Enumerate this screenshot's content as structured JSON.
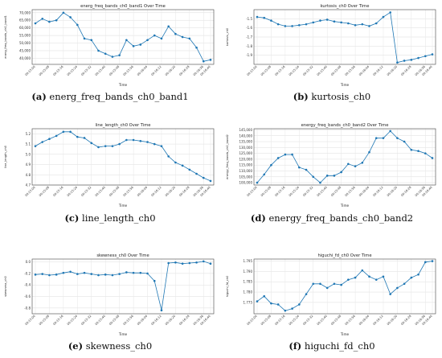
{
  "chart_data": [
    {
      "type": "line",
      "title": "energ_freq_bands_ch0_band1 Over Time",
      "xlabel": "Time",
      "ylabel": "energ_freq_bands_ch0_band1",
      "x": [
        "00:15:00",
        "00:15:04",
        "00:15:08",
        "00:15:12",
        "00:15:16",
        "00:15:20",
        "00:15:24",
        "00:15:28",
        "00:15:32",
        "00:15:36",
        "00:15:40",
        "00:15:44",
        "00:15:48",
        "00:15:52",
        "00:15:56",
        "00:16:00",
        "00:16:04",
        "00:16:08",
        "00:16:12",
        "00:16:16",
        "00:16:20",
        "00:16:24",
        "00:16:28",
        "00:16:32",
        "00:16:36",
        "00:16:40"
      ],
      "xticks": [
        "00:15:00",
        "00:15:08",
        "00:15:16",
        "00:15:24",
        "00:15:32",
        "00:15:40",
        "00:15:48",
        "00:15:56",
        "00:16:04",
        "00:16:12",
        "00:16:20",
        "00:16:28",
        "00:16:36",
        "00:16:40"
      ],
      "values": [
        63000,
        66000,
        64000,
        65000,
        70000,
        67000,
        62000,
        53000,
        52000,
        45000,
        43000,
        41000,
        42000,
        52000,
        48000,
        49000,
        52000,
        55000,
        53000,
        61000,
        56000,
        54000,
        53000,
        47000,
        38000,
        39000
      ],
      "ylim": [
        36000,
        72000
      ],
      "yticks": [
        40000,
        45000,
        50000,
        55000,
        60000,
        65000,
        70000
      ],
      "ytick_labels": [
        "40,000",
        "45,000",
        "50,000",
        "55,000",
        "60,000",
        "65,000",
        "70,000"
      ],
      "grid": true,
      "caption": {
        "letter": "(a)",
        "name": "energ_freq_bands_ch0_band1"
      }
    },
    {
      "type": "line",
      "title": "kurtosis_ch0 Over Time",
      "xlabel": "Time",
      "ylabel": "kurtosis_ch0",
      "x": [
        "00:15:00",
        "00:15:04",
        "00:15:08",
        "00:15:12",
        "00:15:16",
        "00:15:20",
        "00:15:24",
        "00:15:28",
        "00:15:32",
        "00:15:36",
        "00:15:40",
        "00:15:44",
        "00:15:48",
        "00:15:52",
        "00:15:56",
        "00:16:00",
        "00:16:04",
        "00:16:08",
        "00:16:12",
        "00:16:16",
        "00:16:20",
        "00:16:24",
        "00:16:28",
        "00:16:32",
        "00:16:36",
        "00:16:40"
      ],
      "xticks": [
        "00:15:00",
        "00:15:08",
        "00:15:16",
        "00:15:24",
        "00:15:32",
        "00:15:40",
        "00:15:48",
        "00:15:56",
        "00:16:04",
        "00:16:12",
        "00:16:20",
        "00:16:28",
        "00:16:36",
        "00:16:40"
      ],
      "values": [
        -1.48,
        -1.49,
        -1.52,
        -1.56,
        -1.58,
        -1.58,
        -1.57,
        -1.56,
        -1.54,
        -1.52,
        -1.51,
        -1.53,
        -1.54,
        -1.55,
        -1.57,
        -1.56,
        -1.58,
        -1.55,
        -1.48,
        -1.43,
        -1.98,
        -1.96,
        -1.95,
        -1.93,
        -1.91,
        -1.89
      ],
      "ylim": [
        -2.0,
        -1.4
      ],
      "yticks": [
        -1.9,
        -1.8,
        -1.7,
        -1.6,
        -1.5
      ],
      "ytick_labels": [
        "-1.9",
        "-1.8",
        "-1.7",
        "-1.6",
        "-1.5"
      ],
      "grid": true,
      "caption": {
        "letter": "(b)",
        "name": "kurtosis_ch0"
      }
    },
    {
      "type": "line",
      "title": "line_length_ch0 Over Time",
      "xlabel": "Time",
      "ylabel": "line_length_ch0",
      "x": [
        "00:15:00",
        "00:15:04",
        "00:15:08",
        "00:15:12",
        "00:15:16",
        "00:15:20",
        "00:15:24",
        "00:15:28",
        "00:15:32",
        "00:15:36",
        "00:15:40",
        "00:15:44",
        "00:15:48",
        "00:15:52",
        "00:15:56",
        "00:16:00",
        "00:16:04",
        "00:16:08",
        "00:16:12",
        "00:16:16",
        "00:16:20",
        "00:16:24",
        "00:16:28",
        "00:16:32",
        "00:16:36",
        "00:16:40"
      ],
      "xticks": [
        "00:15:00",
        "00:15:08",
        "00:15:16",
        "00:15:24",
        "00:15:32",
        "00:15:40",
        "00:15:48",
        "00:15:56",
        "00:16:04",
        "00:16:12",
        "00:16:20",
        "00:16:28",
        "00:16:36",
        "00:16:40"
      ],
      "values": [
        5.08,
        5.12,
        5.15,
        5.18,
        5.22,
        5.22,
        5.17,
        5.16,
        5.11,
        5.07,
        5.08,
        5.08,
        5.1,
        5.14,
        5.14,
        5.13,
        5.12,
        5.1,
        5.08,
        4.98,
        4.92,
        4.89,
        4.85,
        4.81,
        4.77,
        4.74
      ],
      "ylim": [
        4.7,
        5.25
      ],
      "yticks": [
        4.7,
        4.8,
        4.9,
        5.0,
        5.1,
        5.2
      ],
      "ytick_labels": [
        "4.7",
        "4.8",
        "4.9",
        "5.0",
        "5.1",
        "5.2"
      ],
      "grid": true,
      "caption": {
        "letter": "(c)",
        "name": "line_length_ch0"
      }
    },
    {
      "type": "line",
      "title": "energy_freq_bands_ch0_band2 Over Time",
      "xlabel": "Time",
      "ylabel": "energy_freq_bands_ch0_band2",
      "x": [
        "00:15:00",
        "00:15:04",
        "00:15:08",
        "00:15:12",
        "00:15:16",
        "00:15:20",
        "00:15:24",
        "00:15:28",
        "00:15:32",
        "00:15:36",
        "00:15:40",
        "00:15:44",
        "00:15:48",
        "00:15:52",
        "00:15:56",
        "00:16:00",
        "00:16:04",
        "00:16:08",
        "00:16:12",
        "00:16:16",
        "00:16:20",
        "00:16:24",
        "00:16:28",
        "00:16:32",
        "00:16:36",
        "00:16:40"
      ],
      "xticks": [
        "00:15:00",
        "00:15:08",
        "00:15:16",
        "00:15:24",
        "00:15:32",
        "00:15:40",
        "00:15:48",
        "00:15:56",
        "00:16:04",
        "00:16:12",
        "00:16:20",
        "00:16:28",
        "00:16:36",
        "00:16:40"
      ],
      "values": [
        100000,
        107000,
        115000,
        121000,
        124000,
        124000,
        113000,
        111000,
        105000,
        100000,
        106000,
        106000,
        109000,
        116000,
        114000,
        117000,
        126000,
        138000,
        138000,
        144000,
        138000,
        135000,
        128000,
        127000,
        125000,
        121000
      ],
      "ylim": [
        98000,
        146000
      ],
      "yticks": [
        100000,
        105000,
        110000,
        115000,
        120000,
        125000,
        130000,
        135000,
        140000,
        145000
      ],
      "ytick_labels": [
        "100,000",
        "105,000",
        "110,000",
        "115,000",
        "120,000",
        "125,000",
        "130,000",
        "135,000",
        "140,000",
        "145,000"
      ],
      "grid": true,
      "caption": {
        "letter": "(d)",
        "name": "energy_freq_bands_ch0_band2"
      }
    },
    {
      "type": "line",
      "title": "skewness_ch0 Over Time",
      "xlabel": "Time",
      "ylabel": "skewness_ch0",
      "x": [
        "00:15:00",
        "00:15:04",
        "00:15:08",
        "00:15:12",
        "00:15:16",
        "00:15:20",
        "00:15:24",
        "00:15:28",
        "00:15:32",
        "00:15:36",
        "00:15:40",
        "00:15:44",
        "00:15:48",
        "00:15:52",
        "00:15:56",
        "00:16:00",
        "00:16:04",
        "00:16:08",
        "00:16:12",
        "00:16:16",
        "00:16:20",
        "00:16:24",
        "00:16:28",
        "00:16:32",
        "00:16:36",
        "00:16:40"
      ],
      "xticks": [
        "00:15:00",
        "00:15:08",
        "00:15:16",
        "00:15:24",
        "00:15:32",
        "00:15:40",
        "00:15:48",
        "00:15:56",
        "00:16:04",
        "00:16:12",
        "00:16:20",
        "00:16:28",
        "00:16:36",
        "00:16:40"
      ],
      "values": [
        -0.22,
        -0.21,
        -0.23,
        -0.22,
        -0.19,
        -0.17,
        -0.21,
        -0.19,
        -0.21,
        -0.23,
        -0.22,
        -0.23,
        -0.21,
        -0.18,
        -0.19,
        -0.19,
        -0.2,
        -0.33,
        -0.84,
        -0.02,
        -0.01,
        -0.03,
        -0.02,
        -0.01,
        0.01,
        -0.03
      ],
      "ylim": [
        -0.9,
        0.05
      ],
      "yticks": [
        -0.8,
        -0.6,
        -0.4,
        -0.2,
        0.0
      ],
      "ytick_labels": [
        "-0.8",
        "-0.6",
        "-0.4",
        "-0.2",
        "0.0"
      ],
      "grid": true,
      "caption": {
        "letter": "(e)",
        "name": "skewness_ch0"
      }
    },
    {
      "type": "line",
      "title": "higuchi_fd_ch0 Over Time",
      "xlabel": "Time",
      "ylabel": "higuchi_fd_ch0",
      "x": [
        "00:15:00",
        "00:15:04",
        "00:15:08",
        "00:15:12",
        "00:15:16",
        "00:15:20",
        "00:15:24",
        "00:15:28",
        "00:15:32",
        "00:15:36",
        "00:15:40",
        "00:15:44",
        "00:15:48",
        "00:15:52",
        "00:15:56",
        "00:16:00",
        "00:16:04",
        "00:16:08",
        "00:16:12",
        "00:16:16",
        "00:16:20",
        "00:16:24",
        "00:16:28",
        "00:16:32",
        "00:16:36",
        "00:16:40"
      ],
      "xticks": [
        "00:15:00",
        "00:15:08",
        "00:15:16",
        "00:15:24",
        "00:15:32",
        "00:15:40",
        "00:15:48",
        "00:15:56",
        "00:16:04",
        "00:16:12",
        "00:16:20",
        "00:16:28",
        "00:16:36",
        "00:16:40"
      ],
      "values": [
        1.7755,
        1.778,
        1.7745,
        1.774,
        1.771,
        1.772,
        1.774,
        1.779,
        1.784,
        1.784,
        1.782,
        1.784,
        1.7835,
        1.786,
        1.787,
        1.7905,
        1.7875,
        1.786,
        1.7875,
        1.779,
        1.782,
        1.784,
        1.787,
        1.7885,
        1.7945,
        1.795
      ],
      "ylim": [
        1.7695,
        1.796
      ],
      "yticks": [
        1.775,
        1.78,
        1.785,
        1.79,
        1.795
      ],
      "ytick_labels": [
        "1.775",
        "1.780",
        "1.785",
        "1.790",
        "1.795"
      ],
      "grid": true,
      "caption": {
        "letter": "(f)",
        "name": "higuchi_fd_ch0"
      }
    }
  ]
}
